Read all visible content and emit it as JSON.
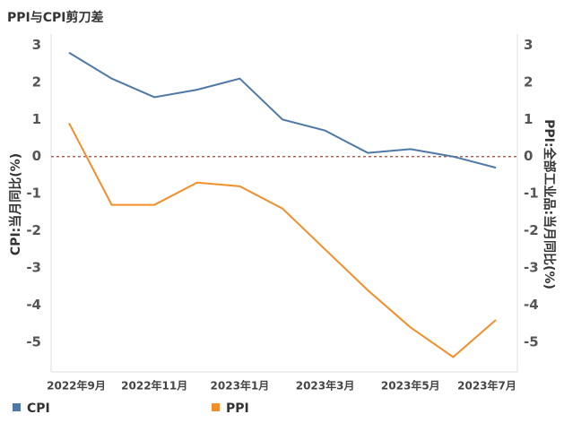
{
  "chart_data": {
    "type": "line",
    "title": "PPI与CPI剪刀差",
    "ylabel": "CPI:当月同比(%)",
    "y2label": "PPI:全部工业品:当月同比(%)",
    "categories": [
      "2022年9月",
      null,
      "2022年11月",
      null,
      "2023年1月",
      null,
      "2023年3月",
      null,
      "2023年5月",
      null,
      "2023年7月"
    ],
    "series": [
      {
        "name": "CPI",
        "color": "#4e79a7",
        "values": [
          2.8,
          2.1,
          1.6,
          1.8,
          2.1,
          1.0,
          0.7,
          0.1,
          0.2,
          0.0,
          -0.3
        ]
      },
      {
        "name": "PPI",
        "color": "#f28e2b",
        "axis": "y2",
        "values": [
          0.9,
          -1.3,
          -1.3,
          -0.7,
          -0.8,
          -1.4,
          -2.5,
          -3.6,
          -4.6,
          -5.4,
          -4.4
        ]
      }
    ],
    "ylim": [
      -5.8,
      3.3
    ],
    "yticks": [
      -5,
      -4,
      -3,
      -2,
      -1,
      0,
      1,
      2,
      3
    ],
    "y2lim": [
      -5.8,
      3.3
    ],
    "y2ticks": [
      -5,
      -4,
      -3,
      -2,
      -1,
      0,
      1,
      2,
      3
    ],
    "reference_line": 0,
    "reference_color": "#c0392b"
  }
}
